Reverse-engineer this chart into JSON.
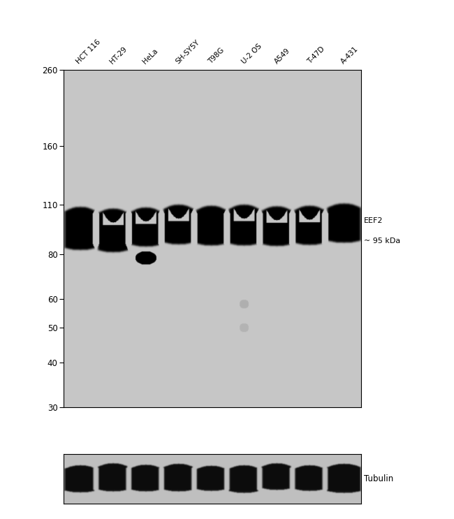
{
  "lane_labels": [
    "HCT 116",
    "HT-29",
    "HeLa",
    "SH-SY5Y",
    "T98G",
    "U-2 OS",
    "A549",
    "T-47D",
    "A-431"
  ],
  "mw_markers": [
    260,
    160,
    110,
    80,
    60,
    50,
    40,
    30
  ],
  "band_label_line1": "EEF2",
  "band_label_line2": "~ 95 kDa",
  "tubulin_label": "Tubulin",
  "panel_bg": "#c8c8c8",
  "lower_bg": "#c0c0c0",
  "fig_bg": "#ffffff",
  "n_lanes": 9
}
